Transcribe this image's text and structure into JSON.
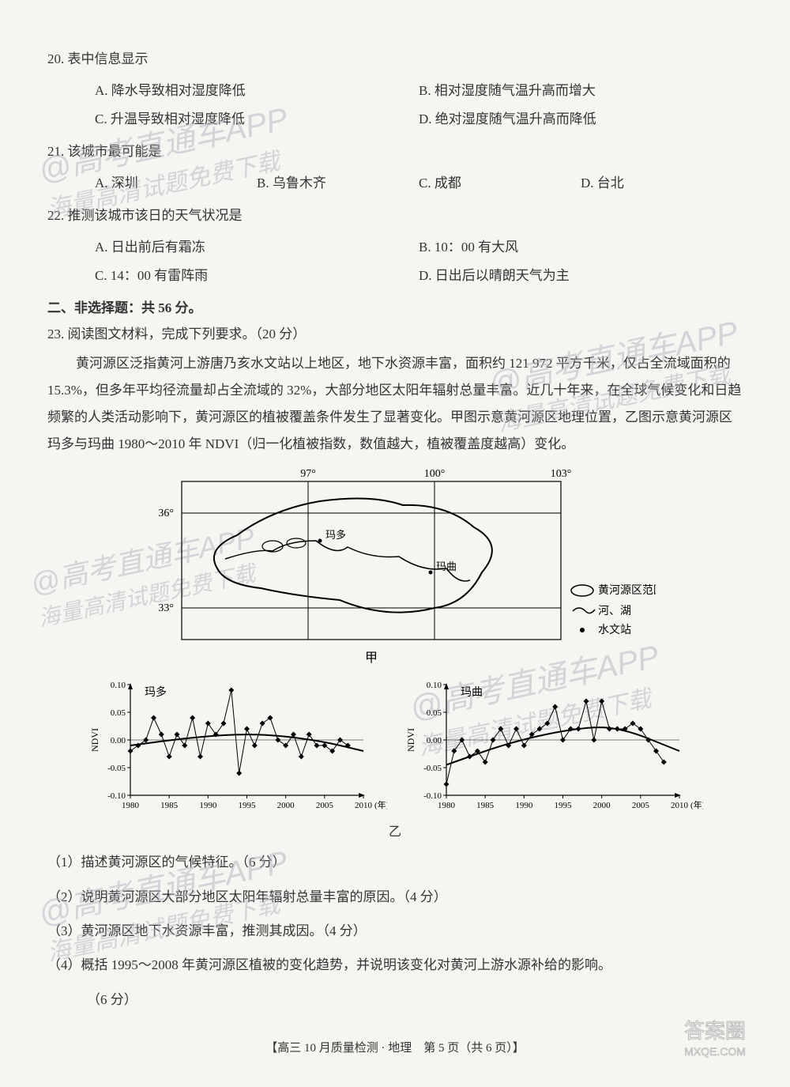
{
  "q20": {
    "num": "20.",
    "stem": "表中信息显示",
    "a": "A. 降水导致相对湿度降低",
    "b": "B. 相对湿度随气温升高而增大",
    "c": "C. 升温导致相对湿度降低",
    "d": "D. 绝对湿度随气温升高而降低"
  },
  "q21": {
    "num": "21.",
    "stem": "该城市最可能是",
    "a": "A. 深圳",
    "b": "B. 乌鲁木齐",
    "c": "C. 成都",
    "d": "D. 台北"
  },
  "q22": {
    "num": "22.",
    "stem": "推测该城市该日的天气状况是",
    "a": "A. 日出前后有霜冻",
    "b": "B. 10：00 有大风",
    "c": "C. 14：00 有雷阵雨",
    "d": "D. 日出后以晴朗天气为主"
  },
  "section2": "二、非选择题：共 56 分。",
  "q23": {
    "num": "23.",
    "stem": "阅读图文材料，完成下列要求。（20 分）",
    "para": "黄河源区泛指黄河上游唐乃亥水文站以上地区，地下水资源丰富，面积约 121 972 平方千米，仅占全流域面积的 15.3%，但多年平均径流量却占全流域的 32%，大部分地区太阳年辐射总量丰富。近几十年来，在全球气候变化和日趋频繁的人类活动影响下，黄河源区的植被覆盖条件发生了显著变化。甲图示意黄河源区地理位置，乙图示意黄河源区玛多与玛曲 1980～2010 年 NDVI（归一化植被指数，数值越大，植被覆盖度越高）变化。",
    "sub1": "（1）描述黄河源区的气候特征。（6 分）",
    "sub2": "（2）说明黄河源区大部分地区太阳年辐射总量丰富的原因。（4 分）",
    "sub3": "（3）黄河源区地下水资源丰富，推测其成因。（4 分）",
    "sub4": "（4）概括 1995～2008 年黄河源区植被的变化趋势，并说明该变化对黄河上游水源补给的影响。",
    "sub4b": "（6 分）"
  },
  "map": {
    "lon_labels": [
      "97°",
      "100°",
      "103°"
    ],
    "lat_labels": [
      "36°",
      "33°"
    ],
    "caption": "甲",
    "legend_area": "黄河源区范围",
    "legend_river": "河、湖",
    "legend_station": "水文站",
    "place_maduo": "玛多",
    "place_maqu": "玛曲"
  },
  "chart_maduo": {
    "title": "玛多",
    "ylabel": "NDVI",
    "ylim": [
      -0.1,
      0.1
    ],
    "yticks": [
      "0.10",
      "0.05",
      "0.00",
      "-0.05",
      "-0.10"
    ],
    "xlim": [
      1980,
      2010
    ],
    "xticks": [
      "1980",
      "1985",
      "1990",
      "1995",
      "2000",
      "2005",
      "2010"
    ],
    "xunit": "(年)",
    "years": [
      1980,
      1981,
      1982,
      1983,
      1984,
      1985,
      1986,
      1987,
      1988,
      1989,
      1990,
      1991,
      1992,
      1993,
      1994,
      1995,
      1996,
      1997,
      1998,
      1999,
      2000,
      2001,
      2002,
      2003,
      2004,
      2005,
      2006,
      2007,
      2008
    ],
    "values": [
      -0.02,
      -0.01,
      0,
      0.04,
      0.01,
      -0.03,
      0.01,
      -0.01,
      0.04,
      -0.03,
      0.03,
      0.01,
      0.03,
      0.09,
      -0.06,
      0.02,
      -0.01,
      0.03,
      0.04,
      0.0,
      -0.01,
      0.01,
      -0.03,
      0.01,
      -0.01,
      -0.01,
      -0.02,
      0.0,
      -0.01
    ],
    "trend": [
      [
        1980,
        -0.01
      ],
      [
        1988,
        0.005
      ],
      [
        1996,
        0.012
      ],
      [
        2004,
        0.0
      ],
      [
        2010,
        -0.02
      ]
    ],
    "line_color": "#000000",
    "marker_color": "#000000",
    "background": "#f5f5f2"
  },
  "chart_maqu": {
    "title": "玛曲",
    "ylabel": "NDVI",
    "ylim": [
      -0.1,
      0.1
    ],
    "yticks": [
      "0.10",
      "0.05",
      "0.00",
      "-0.05",
      "-0.10"
    ],
    "xlim": [
      1980,
      2010
    ],
    "xticks": [
      "1980",
      "1985",
      "1990",
      "1995",
      "2000",
      "2005",
      "2010"
    ],
    "xunit": "(年)",
    "years": [
      1980,
      1981,
      1982,
      1983,
      1984,
      1985,
      1986,
      1987,
      1988,
      1989,
      1990,
      1991,
      1992,
      1993,
      1994,
      1995,
      1996,
      1997,
      1998,
      1999,
      2000,
      2001,
      2002,
      2003,
      2004,
      2005,
      2006,
      2007,
      2008
    ],
    "values": [
      -0.08,
      -0.02,
      0.0,
      -0.03,
      -0.02,
      -0.04,
      0.0,
      0.02,
      -0.01,
      0.02,
      -0.01,
      0.01,
      0.02,
      0.03,
      0.06,
      0.0,
      0.02,
      0.02,
      0.07,
      0.0,
      0.07,
      0.02,
      0.02,
      0.02,
      0.03,
      0.02,
      0.0,
      -0.02,
      -0.04
    ],
    "trend": [
      [
        1980,
        -0.045
      ],
      [
        1988,
        -0.005
      ],
      [
        1996,
        0.02
      ],
      [
        2002,
        0.025
      ],
      [
        2010,
        -0.02
      ]
    ],
    "line_color": "#000000",
    "marker_color": "#000000",
    "background": "#f5f5f2"
  },
  "chart_caption": "乙",
  "footer": "【高三 10 月质量检测 · 地理　第 5 页（共 6 页）】",
  "watermarks": {
    "wm1a": "@高考直通车APP",
    "wm1b": "海量高清试题免费下载",
    "stamp_top": "答案圈",
    "stamp_bottom": "MXQE.COM"
  },
  "colors": {
    "text": "#333333",
    "watermark": "rgba(180,180,190,0.5)",
    "stroke": "#000000"
  }
}
